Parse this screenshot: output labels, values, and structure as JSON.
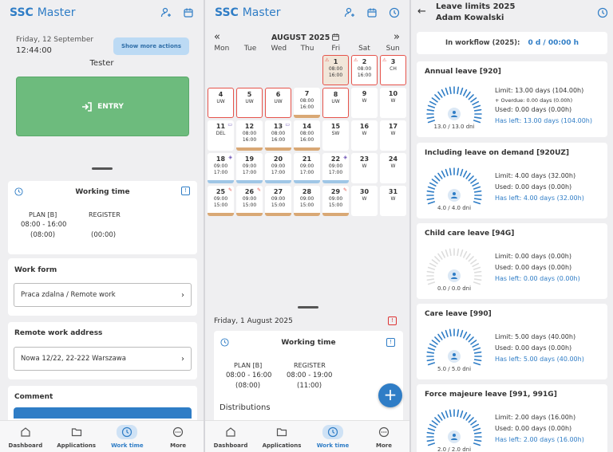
{
  "p1": {
    "brand_a": "SSC",
    "brand_b": "Master",
    "date": "Friday, 12 September",
    "time": "12:44:00",
    "more_actions": "Show more actions",
    "user": "Tester",
    "entry": "ENTRY",
    "working_time": "Working time",
    "plan_label": "PLAN [B]",
    "plan_hours": "08:00 - 16:00",
    "plan_total": "(08:00)",
    "register_label": "REGISTER",
    "register_total": "(00:00)",
    "work_form_label": "Work form",
    "work_form_value": "Praca zdalna / Remote work",
    "address_label": "Remote work address",
    "address_value": "Nowa 12/22, 22-222 Warszawa",
    "comment_label": "Comment"
  },
  "nav": {
    "dashboard": "Dashboard",
    "applications": "Applications",
    "work_time": "Work time",
    "more": "More"
  },
  "p2": {
    "brand_a": "SSC",
    "brand_b": "Master",
    "month": "AUGUST 2025",
    "prev": "«",
    "next": "»",
    "weekdays": [
      "Mon",
      "Tue",
      "Wed",
      "Thu",
      "Fri",
      "Sat",
      "Sun"
    ],
    "days": [
      {
        "d": "1",
        "l1": "08:00",
        "l2": "16:00",
        "warn": "⚠"
      },
      {
        "d": "2",
        "l1": "08:00",
        "l2": "16:00",
        "warn": "⚠"
      },
      {
        "d": "3",
        "l1": "CH",
        "l2": "",
        "warn": "⚠"
      },
      {
        "d": "4",
        "l1": "UW",
        "l2": ""
      },
      {
        "d": "5",
        "l1": "UW",
        "l2": ""
      },
      {
        "d": "6",
        "l1": "UW",
        "l2": ""
      },
      {
        "d": "7",
        "l1": "08:00",
        "l2": "16:00"
      },
      {
        "d": "8",
        "l1": "UW",
        "l2": ""
      },
      {
        "d": "9",
        "l1": "W",
        "l2": ""
      },
      {
        "d": "10",
        "l1": "W",
        "l2": ""
      },
      {
        "d": "11",
        "l1": "DEL",
        "l2": ""
      },
      {
        "d": "12",
        "l1": "08:00",
        "l2": "16:00"
      },
      {
        "d": "13",
        "l1": "08:00",
        "l2": "16:00"
      },
      {
        "d": "14",
        "l1": "08:00",
        "l2": "16:00"
      },
      {
        "d": "15",
        "l1": "SW",
        "l2": ""
      },
      {
        "d": "16",
        "l1": "W",
        "l2": ""
      },
      {
        "d": "17",
        "l1": "W",
        "l2": ""
      },
      {
        "d": "18",
        "l1": "09:00",
        "l2": "17:00"
      },
      {
        "d": "19",
        "l1": "09:00",
        "l2": "17:00"
      },
      {
        "d": "20",
        "l1": "09:00",
        "l2": "17:00"
      },
      {
        "d": "21",
        "l1": "09:00",
        "l2": "17:00"
      },
      {
        "d": "22",
        "l1": "09:00",
        "l2": "17:00"
      },
      {
        "d": "23",
        "l1": "W",
        "l2": ""
      },
      {
        "d": "24",
        "l1": "W",
        "l2": ""
      },
      {
        "d": "25",
        "l1": "09:00",
        "l2": "15:00"
      },
      {
        "d": "26",
        "l1": "09:00",
        "l2": "15:00"
      },
      {
        "d": "27",
        "l1": "09:00",
        "l2": "15:00"
      },
      {
        "d": "28",
        "l1": "09:00",
        "l2": "15:00"
      },
      {
        "d": "29",
        "l1": "09:00",
        "l2": "15:00"
      },
      {
        "d": "30",
        "l1": "W",
        "l2": ""
      },
      {
        "d": "31",
        "l1": "W",
        "l2": ""
      }
    ],
    "day_title": "Friday, 1 August 2025",
    "working_time": "Working time",
    "plan_label": "PLAN [B]",
    "plan_hours": "08:00 - 16:00",
    "plan_total": "(08:00)",
    "register_label": "REGISTER",
    "register_hours": "08:00 - 19:00",
    "register_total": "(11:00)",
    "distributions": "Distributions",
    "fab": "+"
  },
  "p3": {
    "title": "Leave limits 2025",
    "name": "Adam Kowalski",
    "workflow_label": "In workflow (2025):",
    "workflow_value": "0 d / 00:00 h",
    "cards": [
      {
        "title": "Annual leave [920]",
        "limit": "Limit: 13.00 days (104.00h)",
        "overdue": "+ Overdue: 0.00 days (0.00h)",
        "used": "Used: 0.00 days (0.00h)",
        "left": "Has left: 13.00 days (104.00h)",
        "gauge": "13.0 / 13.0 dni",
        "fill": 1
      },
      {
        "title": "Including leave on demand [920UZ]",
        "limit": "Limit: 4.00 days (32.00h)",
        "used": "Used: 0.00 days (0.00h)",
        "left": "Has left: 4.00 days (32.00h)",
        "gauge": "4.0 / 4.0 dni",
        "fill": 1
      },
      {
        "title": "Child care leave [94G]",
        "limit": "Limit: 0.00 days (0.00h)",
        "used": "Used: 0.00 days (0.00h)",
        "left": "Has left: 0.00 days (0.00h)",
        "gauge": "0.0 / 0.0 dni",
        "fill": 0
      },
      {
        "title": "Care leave [990]",
        "limit": "Limit: 5.00 days (40.00h)",
        "used": "Used: 0.00 days (0.00h)",
        "left": "Has left: 5.00 days (40.00h)",
        "gauge": "5.0 / 5.0 dni",
        "fill": 1
      },
      {
        "title": "Force majeure leave [991, 991G]",
        "limit": "Limit: 2.00 days (16.00h)",
        "used": "Used: 0.00 days (0.00h)",
        "left": "Has left: 2.00 days (16.00h)",
        "gauge": "2.0 / 2.0 dni",
        "fill": 1
      }
    ]
  },
  "colors": {
    "accent": "#2f7dc6",
    "entry": "#6dbb7d",
    "warn": "#e5534b"
  }
}
